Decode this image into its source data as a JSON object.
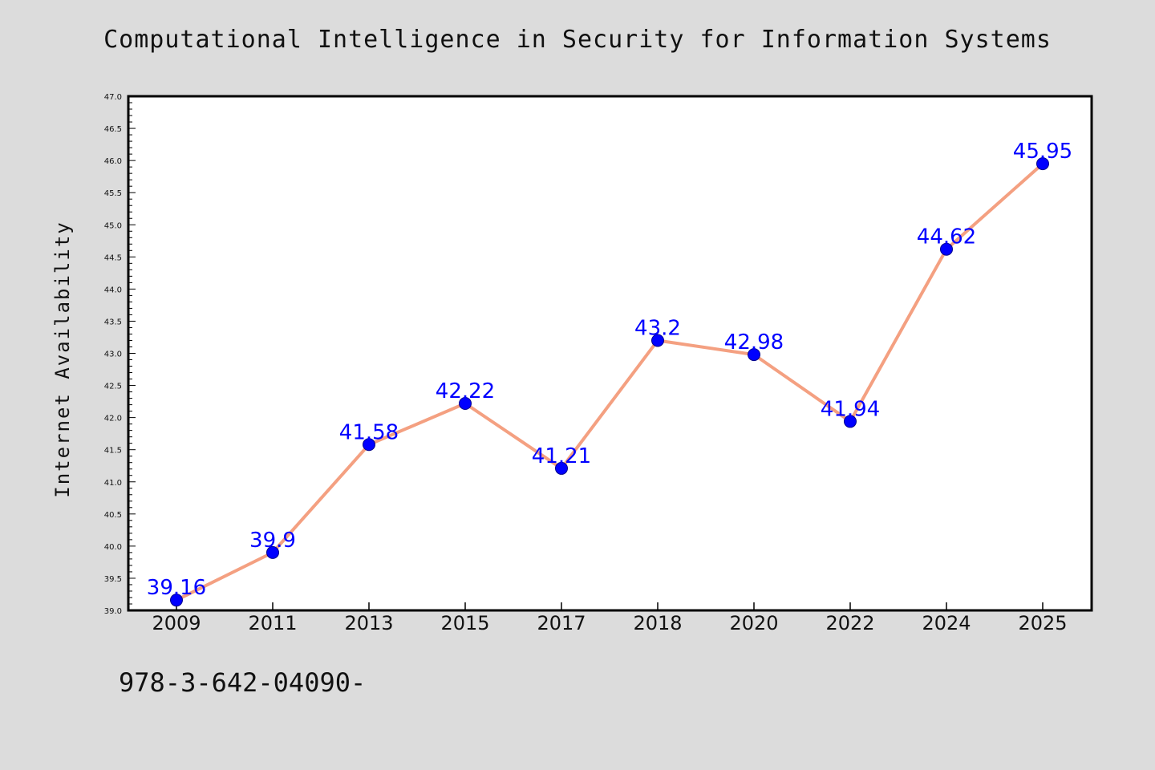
{
  "chart_data": {
    "type": "line",
    "title": "Computational Intelligence in Security for Information Systems",
    "xlabel": "",
    "ylabel": "Internet Availability",
    "categories": [
      "2009",
      "2011",
      "2013",
      "2015",
      "2017",
      "2018",
      "2020",
      "2022",
      "2024",
      "2025"
    ],
    "series": [
      {
        "values": [
          39.16,
          39.9,
          41.58,
          42.22,
          41.21,
          43.2,
          42.98,
          41.94,
          44.62,
          45.95
        ],
        "labels": [
          "39.16",
          "39.9",
          "41.58",
          "42.22",
          "41.21",
          "43.2",
          "42.98",
          "41.94",
          "44.62",
          "45.95"
        ]
      }
    ],
    "ylim": [
      39.0,
      47.0
    ],
    "yticks": [
      "39.0",
      "39.5",
      "40.0",
      "40.5",
      "41.0",
      "41.5",
      "42.0",
      "42.5",
      "43.0",
      "43.5",
      "44.0",
      "44.5",
      "45.0",
      "45.5",
      "46.0",
      "46.5",
      "47.0"
    ],
    "grid": false,
    "legend": "none",
    "colors": {
      "line": "#f4a081",
      "marker": "#0000ff",
      "marker_edge": "#00008b",
      "data_label": "#0000ff",
      "background": "#dcdcdc",
      "plot_background": "#ffffff"
    }
  },
  "footer": {
    "text": "978-3-642-04090-"
  }
}
